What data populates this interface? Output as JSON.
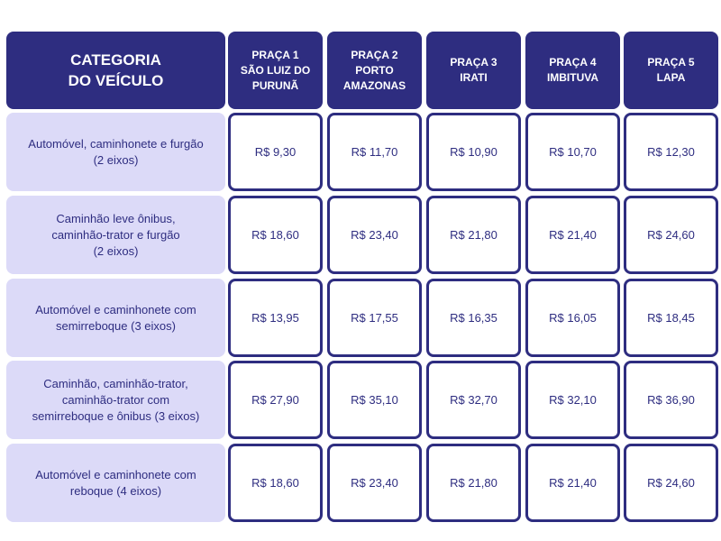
{
  "table": {
    "header": {
      "category": [
        "CATEGORIA",
        "DO VEÍCULO"
      ],
      "plazas": [
        [
          "PRAÇA 1",
          "SÃO LUIZ DO",
          "PURUNÃ"
        ],
        [
          "PRAÇA 2",
          "PORTO",
          "AMAZONAS"
        ],
        [
          "PRAÇA 3",
          "IRATI"
        ],
        [
          "PRAÇA 4",
          "IMBITUVA"
        ],
        [
          "PRAÇA 5",
          "LAPA"
        ]
      ]
    },
    "rows": [
      {
        "category": [
          "Automóvel, caminhonete e furgão",
          "(2 eixos)"
        ],
        "prices": [
          "R$ 9,30",
          "R$ 11,70",
          "R$ 10,90",
          "R$ 10,70",
          "R$ 12,30"
        ]
      },
      {
        "category": [
          "Caminhão leve ônibus,",
          "caminhão-trator e furgão",
          "(2 eixos)"
        ],
        "prices": [
          "R$ 18,60",
          "R$ 23,40",
          "R$ 21,80",
          "R$ 21,40",
          "R$ 24,60"
        ]
      },
      {
        "category": [
          "Automóvel e caminhonete com",
          "semirreboque (3 eixos)"
        ],
        "prices": [
          "R$ 13,95",
          "R$ 17,55",
          "R$ 16,35",
          "R$ 16,05",
          "R$ 18,45"
        ]
      },
      {
        "category": [
          "Caminhão, caminhão-trator,",
          "caminhão-trator com",
          "semirreboque e ônibus (3 eixos)"
        ],
        "prices": [
          "R$ 27,90",
          "R$ 35,10",
          "R$ 32,70",
          "R$ 32,10",
          "R$ 36,90"
        ]
      },
      {
        "category": [
          "Automóvel e caminhonete com",
          "reboque (4 eixos)"
        ],
        "prices": [
          "R$ 18,60",
          "R$ 23,40",
          "R$ 21,80",
          "R$ 21,40",
          "R$ 24,60"
        ]
      }
    ]
  }
}
